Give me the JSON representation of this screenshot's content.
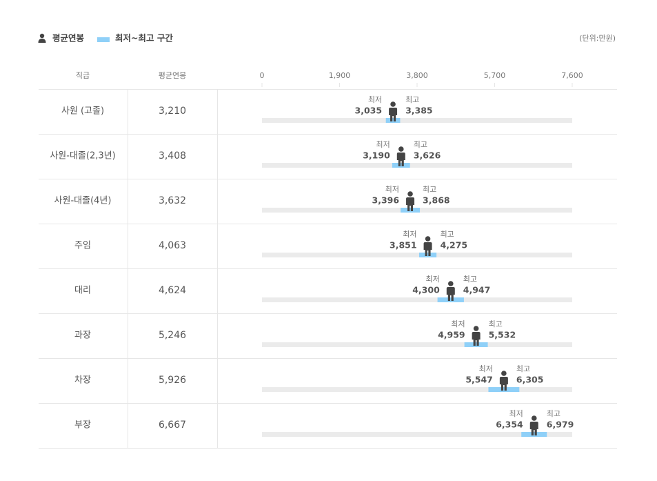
{
  "chart_data": {
    "type": "range",
    "legend": {
      "average": "평균연봉",
      "range": "최저~최고 구간"
    },
    "unit": "(단위:만원)",
    "headers": {
      "category": "직급",
      "value": "평균연봉"
    },
    "low_label": "최저",
    "high_label": "최고",
    "categories": [
      "사원 (고졸)",
      "사원-대졸(2,3년)",
      "사원-대졸(4년)",
      "주임",
      "대리",
      "과장",
      "차장",
      "부장"
    ],
    "values": [
      3210,
      3408,
      3632,
      4063,
      4624,
      5246,
      5926,
      6667
    ],
    "value_labels": [
      "3,210",
      "3,408",
      "3,632",
      "4,063",
      "4,624",
      "5,246",
      "5,926",
      "6,667"
    ],
    "low": [
      3035,
      3190,
      3396,
      3851,
      4300,
      4959,
      5547,
      6354
    ],
    "low_labels": [
      "3,035",
      "3,190",
      "3,396",
      "3,851",
      "4,300",
      "4,959",
      "5,547",
      "6,354"
    ],
    "high": [
      3385,
      3626,
      3868,
      4275,
      4947,
      5532,
      6305,
      6979
    ],
    "high_labels": [
      "3,385",
      "3,626",
      "3,868",
      "4,275",
      "4,947",
      "5,532",
      "6,305",
      "6,979"
    ],
    "xlim": [
      0,
      7600
    ],
    "xticks": [
      0,
      {
        "value": 1900,
        "label": "1,900"
      },
      {
        "value": 3800,
        "label": "3,800"
      },
      {
        "value": 5700,
        "label": "5,700"
      },
      {
        "value": 7600,
        "label": "7,600"
      }
    ],
    "color": "#8fd0f8",
    "icon_color": "#444444",
    "track_color": "#ebebeb"
  }
}
